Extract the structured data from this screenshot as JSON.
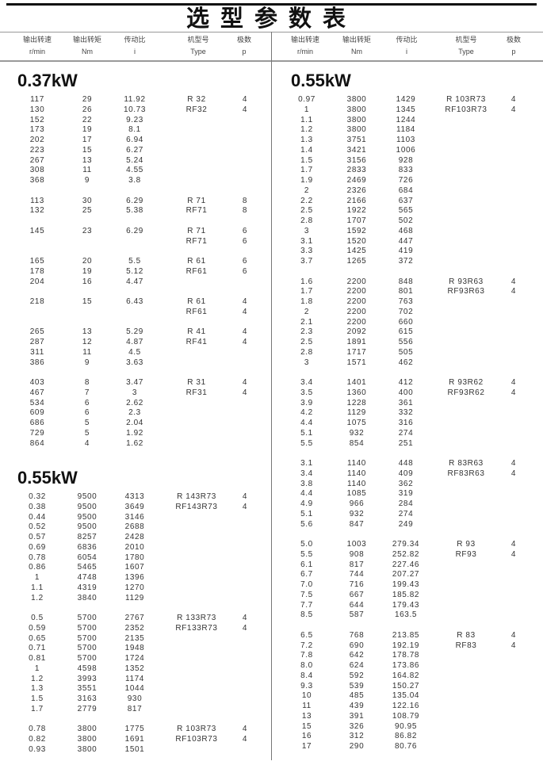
{
  "title": "选型参数表",
  "headers": [
    {
      "cn": "输出转速",
      "unit": "r/min"
    },
    {
      "cn": "输出转矩",
      "unit": "Nm"
    },
    {
      "cn": "传动比",
      "unit": "i"
    },
    {
      "cn": "机型号",
      "unit": "Type"
    },
    {
      "cn": "极数",
      "unit": "p"
    }
  ],
  "left": [
    {
      "title": "0.37kW",
      "groups": [
        [
          [
            "117",
            "29",
            "11.92",
            "R 32",
            "4"
          ],
          [
            "130",
            "26",
            "10.73",
            "RF32",
            "4"
          ],
          [
            "152",
            "22",
            "9.23",
            "",
            ""
          ],
          [
            "173",
            "19",
            "8.1",
            "",
            ""
          ],
          [
            "202",
            "17",
            "6.94",
            "",
            ""
          ],
          [
            "223",
            "15",
            "6.27",
            "",
            ""
          ],
          [
            "267",
            "13",
            "5.24",
            "",
            ""
          ],
          [
            "308",
            "11",
            "4.55",
            "",
            ""
          ],
          [
            "368",
            "9",
            "3.8",
            "",
            ""
          ]
        ],
        [
          [
            "113",
            "30",
            "6.29",
            "R 71",
            "8"
          ],
          [
            "132",
            "25",
            "5.38",
            "RF71",
            "8"
          ]
        ],
        [
          [
            "145",
            "23",
            "6.29",
            "R 71",
            "6"
          ],
          [
            "",
            "",
            "",
            "RF71",
            "6"
          ]
        ],
        [
          [
            "165",
            "20",
            "5.5",
            "R 61",
            "6"
          ],
          [
            "178",
            "19",
            "5.12",
            "RF61",
            "6"
          ],
          [
            "204",
            "16",
            "4.47",
            "",
            ""
          ]
        ],
        [
          [
            "218",
            "15",
            "6.43",
            "R 61",
            "4"
          ],
          [
            "",
            "",
            "",
            "RF61",
            "4"
          ]
        ],
        [
          [
            "265",
            "13",
            "5.29",
            "R 41",
            "4"
          ],
          [
            "287",
            "12",
            "4.87",
            "RF41",
            "4"
          ],
          [
            "311",
            "11",
            "4.5",
            "",
            ""
          ],
          [
            "386",
            "9",
            "3.63",
            "",
            ""
          ]
        ],
        [
          [
            "403",
            "8",
            "3.47",
            "R 31",
            "4"
          ],
          [
            "467",
            "7",
            "3",
            "RF31",
            "4"
          ],
          [
            "534",
            "6",
            "2.62",
            "",
            ""
          ],
          [
            "609",
            "6",
            "2.3",
            "",
            ""
          ],
          [
            "686",
            "5",
            "2.04",
            "",
            ""
          ],
          [
            "729",
            "5",
            "1.92",
            "",
            ""
          ],
          [
            "864",
            "4",
            "1.62",
            "",
            ""
          ]
        ]
      ]
    },
    {
      "title": "0.55kW",
      "groups": [
        [
          [
            "0.32",
            "9500",
            "4313",
            "R 143R73",
            "4"
          ],
          [
            "0.38",
            "9500",
            "3649",
            "RF143R73",
            "4"
          ],
          [
            "0.44",
            "9500",
            "3146",
            "",
            ""
          ],
          [
            "0.52",
            "9500",
            "2688",
            "",
            ""
          ],
          [
            "0.57",
            "8257",
            "2428",
            "",
            ""
          ],
          [
            "0.69",
            "6836",
            "2010",
            "",
            ""
          ],
          [
            "0.78",
            "6054",
            "1780",
            "",
            ""
          ],
          [
            "0.86",
            "5465",
            "1607",
            "",
            ""
          ],
          [
            "1",
            "4748",
            "1396",
            "",
            ""
          ],
          [
            "1.1",
            "4319",
            "1270",
            "",
            ""
          ],
          [
            "1.2",
            "3840",
            "1129",
            "",
            ""
          ]
        ],
        [
          [
            "0.5",
            "5700",
            "2767",
            "R 133R73",
            "4"
          ],
          [
            "0.59",
            "5700",
            "2352",
            "RF133R73",
            "4"
          ],
          [
            "0.65",
            "5700",
            "2135",
            "",
            ""
          ],
          [
            "0.71",
            "5700",
            "1948",
            "",
            ""
          ],
          [
            "0.81",
            "5700",
            "1724",
            "",
            ""
          ],
          [
            "1",
            "4598",
            "1352",
            "",
            ""
          ],
          [
            "1.2",
            "3993",
            "1174",
            "",
            ""
          ],
          [
            "1.3",
            "3551",
            "1044",
            "",
            ""
          ],
          [
            "1.5",
            "3163",
            "930",
            "",
            ""
          ],
          [
            "1.7",
            "2779",
            "817",
            "",
            ""
          ]
        ],
        [
          [
            "0.78",
            "3800",
            "1775",
            "R 103R73",
            "4"
          ],
          [
            "0.82",
            "3800",
            "1691",
            "RF103R73",
            "4"
          ],
          [
            "0.93",
            "3800",
            "1501",
            "",
            ""
          ]
        ]
      ]
    }
  ],
  "right": [
    {
      "title": "0.55kW",
      "groups": [
        [
          [
            "0.97",
            "3800",
            "1429",
            "R 103R73",
            "4"
          ],
          [
            "1",
            "3800",
            "1345",
            "RF103R73",
            "4"
          ],
          [
            "1.1",
            "3800",
            "1244",
            "",
            ""
          ],
          [
            "1.2",
            "3800",
            "1184",
            "",
            ""
          ],
          [
            "1.3",
            "3751",
            "1103",
            "",
            ""
          ],
          [
            "1.4",
            "3421",
            "1006",
            "",
            ""
          ],
          [
            "1.5",
            "3156",
            "928",
            "",
            ""
          ],
          [
            "1.7",
            "2833",
            "833",
            "",
            ""
          ],
          [
            "1.9",
            "2469",
            "726",
            "",
            ""
          ],
          [
            "2",
            "2326",
            "684",
            "",
            ""
          ],
          [
            "2.2",
            "2166",
            "637",
            "",
            ""
          ],
          [
            "2.5",
            "1922",
            "565",
            "",
            ""
          ],
          [
            "2.8",
            "1707",
            "502",
            "",
            ""
          ],
          [
            "3",
            "1592",
            "468",
            "",
            ""
          ],
          [
            "3.1",
            "1520",
            "447",
            "",
            ""
          ],
          [
            "3.3",
            "1425",
            "419",
            "",
            ""
          ],
          [
            "3.7",
            "1265",
            "372",
            "",
            ""
          ]
        ],
        [
          [
            "1.6",
            "2200",
            "848",
            "R 93R63",
            "4"
          ],
          [
            "1.7",
            "2200",
            "801",
            "RF93R63",
            "4"
          ],
          [
            "1.8",
            "2200",
            "763",
            "",
            ""
          ],
          [
            "2",
            "2200",
            "702",
            "",
            ""
          ],
          [
            "2.1",
            "2200",
            "660",
            "",
            ""
          ],
          [
            "2.3",
            "2092",
            "615",
            "",
            ""
          ],
          [
            "2.5",
            "1891",
            "556",
            "",
            ""
          ],
          [
            "2.8",
            "1717",
            "505",
            "",
            ""
          ],
          [
            "3",
            "1571",
            "462",
            "",
            ""
          ]
        ],
        [
          [
            "3.4",
            "1401",
            "412",
            "R 93R62",
            "4"
          ],
          [
            "3.5",
            "1360",
            "400",
            "RF93R62",
            "4"
          ],
          [
            "3.9",
            "1228",
            "361",
            "",
            ""
          ],
          [
            "4.2",
            "1129",
            "332",
            "",
            ""
          ],
          [
            "4.4",
            "1075",
            "316",
            "",
            ""
          ],
          [
            "5.1",
            "932",
            "274",
            "",
            ""
          ],
          [
            "5.5",
            "854",
            "251",
            "",
            ""
          ]
        ],
        [
          [
            "3.1",
            "1140",
            "448",
            "R 83R63",
            "4"
          ],
          [
            "3.4",
            "1140",
            "409",
            "RF83R63",
            "4"
          ],
          [
            "3.8",
            "1140",
            "362",
            "",
            ""
          ],
          [
            "4.4",
            "1085",
            "319",
            "",
            ""
          ],
          [
            "4.9",
            "966",
            "284",
            "",
            ""
          ],
          [
            "5.1",
            "932",
            "274",
            "",
            ""
          ],
          [
            "5.6",
            "847",
            "249",
            "",
            ""
          ]
        ],
        [
          [
            "5.0",
            "1003",
            "279.34",
            "R 93",
            "4"
          ],
          [
            "5.5",
            "908",
            "252.82",
            "RF93",
            "4"
          ],
          [
            "6.1",
            "817",
            "227.46",
            "",
            ""
          ],
          [
            "6.7",
            "744",
            "207.27",
            "",
            ""
          ],
          [
            "7.0",
            "716",
            "199.43",
            "",
            ""
          ],
          [
            "7.5",
            "667",
            "185.82",
            "",
            ""
          ],
          [
            "7.7",
            "644",
            "179.43",
            "",
            ""
          ],
          [
            "8.5",
            "587",
            "163.5",
            "",
            ""
          ]
        ],
        [
          [
            "6.5",
            "768",
            "213.85",
            "R 83",
            "4"
          ],
          [
            "7.2",
            "690",
            "192.19",
            "RF83",
            "4"
          ],
          [
            "7.8",
            "642",
            "178.78",
            "",
            ""
          ],
          [
            "8.0",
            "624",
            "173.86",
            "",
            ""
          ],
          [
            "8.4",
            "592",
            "164.82",
            "",
            ""
          ],
          [
            "9.3",
            "539",
            "150.27",
            "",
            ""
          ],
          [
            "10",
            "485",
            "135.04",
            "",
            ""
          ],
          [
            "11",
            "439",
            "122.16",
            "",
            ""
          ],
          [
            "13",
            "391",
            "108.79",
            "",
            ""
          ],
          [
            "15",
            "326",
            "90.95",
            "",
            ""
          ],
          [
            "16",
            "312",
            "86.82",
            "",
            ""
          ],
          [
            "17",
            "290",
            "80.76",
            "",
            ""
          ]
        ]
      ]
    }
  ]
}
